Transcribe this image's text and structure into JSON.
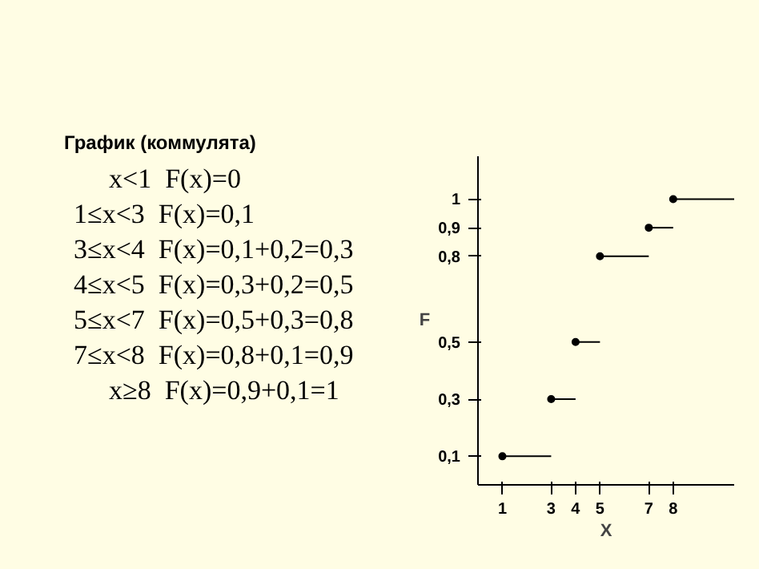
{
  "chart_data": {
    "type": "step",
    "title": "График (коммулята)",
    "xlabel": "X",
    "ylabel": "F",
    "x": [
      1,
      3,
      4,
      5,
      7,
      8,
      10.5
    ],
    "series": [
      {
        "color": "#000000",
        "values": [
          0.1,
          0.3,
          0.5,
          0.8,
          0.9,
          1,
          1
        ]
      }
    ],
    "xlim": [
      0,
      10.5
    ],
    "ylim": [
      0,
      1.15
    ],
    "xticks": [
      1,
      3,
      4,
      5,
      7,
      8
    ],
    "yticks": [
      {
        "value": 0.1,
        "label": "0,1"
      },
      {
        "value": 0.3,
        "label": "0,3"
      },
      {
        "value": 0.5,
        "label": "0,5"
      },
      {
        "value": 0.8,
        "label": "0,8"
      },
      {
        "value": 0.9,
        "label": "0,9"
      },
      {
        "value": 1,
        "label": "1"
      }
    ],
    "marker": "circle",
    "grid": false,
    "annotations": [
      "x<1  F(x)=0",
      "1≤x<3  F(x)=0,1",
      "3≤x<4  F(x)=0,1+0,2=0,3",
      "4≤x<5  F(x)=0,3+0,2=0,5",
      "5≤x<7  F(x)=0,5+0,3=0,8",
      "7≤x<8  F(x)=0,8+0,1=0,9",
      "x≥8  F(x)=0,9+0,1=1"
    ]
  }
}
